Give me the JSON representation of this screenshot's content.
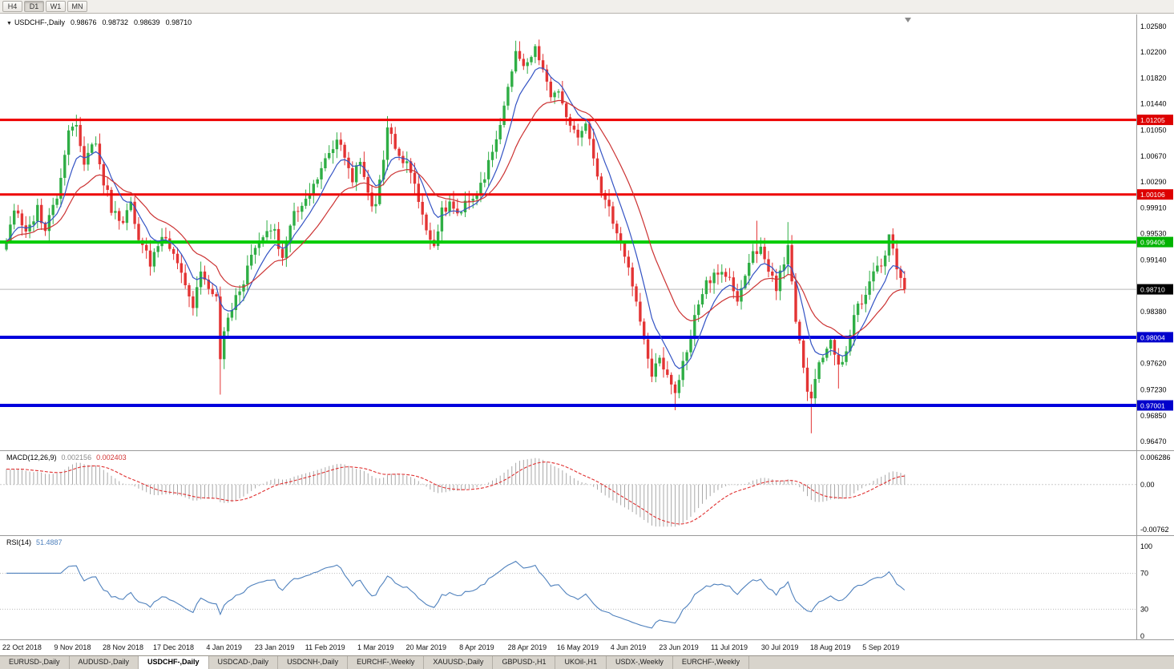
{
  "toolbar": {
    "periods": [
      "H4",
      "D1",
      "W1",
      "MN"
    ],
    "active": "D1"
  },
  "title": {
    "symbol": "USDCHF-,Daily",
    "open": "0.98676",
    "high": "0.98732",
    "low": "0.98639",
    "close": "0.98710"
  },
  "tabs": {
    "items": [
      "EURUSD-,Daily",
      "AUDUSD-,Daily",
      "USDCHF-,Daily",
      "USDCAD-,Daily",
      "USDCNH-,Daily",
      "EURCHF-,Weekly",
      "XAUUSD-,Daily",
      "GBPUSD-,H1",
      "UKOil-,H1",
      "USDX-,Weekly",
      "EURCHF-,Weekly"
    ],
    "active_index": 2
  },
  "chart_data": {
    "type": "candlestick",
    "symbol": "USDCHF",
    "timeframe": "Daily",
    "bar_count": 232,
    "last_close": 0.9871,
    "price_range": {
      "max": 1.0258,
      "min": 0.9647
    },
    "y_axis_ticks": [
      "1.02580",
      "1.02200",
      "1.01820",
      "1.01440",
      "1.01050",
      "1.00670",
      "1.00290",
      "0.99910",
      "0.99530",
      "0.99140",
      "0.98380",
      "0.97620",
      "0.97230",
      "0.96850",
      "0.96470"
    ],
    "price_badges": [
      {
        "value": "1.01205",
        "color": "#dd0000"
      },
      {
        "value": "1.00106",
        "color": "#dd0000"
      },
      {
        "value": "0.99406",
        "color": "#00b300"
      },
      {
        "value": "0.98710",
        "color": "#000000"
      },
      {
        "value": "0.98004",
        "color": "#0000cc"
      },
      {
        "value": "0.97001",
        "color": "#0000cc"
      }
    ],
    "hlines": [
      {
        "value": 1.01205,
        "color": "#ee0000",
        "width": 3
      },
      {
        "value": 1.00106,
        "color": "#ee0000",
        "width": 3
      },
      {
        "value": 0.99406,
        "color": "#00cc00",
        "width": 4
      },
      {
        "value": 0.98004,
        "color": "#0000dd",
        "width": 4
      },
      {
        "value": 0.97001,
        "color": "#0000dd",
        "width": 4
      }
    ],
    "current_price_line": 0.9871,
    "date_labels": [
      "22 Oct 2018",
      "9 Nov 2018",
      "28 Nov 2018",
      "17 Dec 2018",
      "4 Jan 2019",
      "23 Jan 2019",
      "11 Feb 2019",
      "1 Mar 2019",
      "20 Mar 2019",
      "8 Apr 2019",
      "28 Apr 2019",
      "16 May 2019",
      "4 Jun 2019",
      "23 Jun 2019",
      "11 Jul 2019",
      "30 Jul 2019",
      "18 Aug 2019",
      "5 Sep 2019"
    ],
    "anchors": [
      [
        0,
        0.9945
      ],
      [
        2,
        0.999
      ],
      [
        5,
        0.995
      ],
      [
        8,
        0.999
      ],
      [
        10,
        0.996
      ],
      [
        13,
        1.001
      ],
      [
        16,
        1.0105
      ],
      [
        18,
        1.0118
      ],
      [
        20,
        1.006
      ],
      [
        23,
        1.009
      ],
      [
        25,
        1.003
      ],
      [
        27,
        0.999
      ],
      [
        30,
        0.9965
      ],
      [
        32,
        1.0
      ],
      [
        34,
        0.9945
      ],
      [
        37,
        0.991
      ],
      [
        40,
        0.995
      ],
      [
        43,
        0.993
      ],
      [
        46,
        0.988
      ],
      [
        48,
        0.9845
      ],
      [
        50,
        0.99
      ],
      [
        52,
        0.987
      ],
      [
        54,
        0.9855
      ],
      [
        55,
        0.9765
      ],
      [
        56,
        0.9815
      ],
      [
        58,
        0.984
      ],
      [
        60,
        0.987
      ],
      [
        63,
        0.9915
      ],
      [
        66,
        0.995
      ],
      [
        69,
        0.9955
      ],
      [
        71,
        0.992
      ],
      [
        74,
        0.998
      ],
      [
        77,
        1.0
      ],
      [
        80,
        1.004
      ],
      [
        82,
        1.006
      ],
      [
        85,
        1.009
      ],
      [
        87,
        1.0065
      ],
      [
        89,
        1.0035
      ],
      [
        91,
        1.006
      ],
      [
        93,
        1.001
      ],
      [
        95,
        0.999
      ],
      [
        97,
        1.006
      ],
      [
        98,
        1.0115
      ],
      [
        101,
        1.007
      ],
      [
        104,
        1.0045
      ],
      [
        106,
        1.0
      ],
      [
        108,
        0.996
      ],
      [
        110,
        0.9935
      ],
      [
        112,
        0.9985
      ],
      [
        114,
        1.0
      ],
      [
        116,
        0.998
      ],
      [
        118,
        1.0
      ],
      [
        121,
        1.001
      ],
      [
        123,
        1.004
      ],
      [
        125,
        1.007
      ],
      [
        127,
        1.011
      ],
      [
        129,
        1.0165
      ],
      [
        131,
        1.0215
      ],
      [
        133,
        1.0195
      ],
      [
        134,
        1.0205
      ],
      [
        136,
        1.0225
      ],
      [
        138,
        1.019
      ],
      [
        140,
        1.015
      ],
      [
        142,
        1.0165
      ],
      [
        144,
        1.012
      ],
      [
        147,
        1.009
      ],
      [
        149,
        1.011
      ],
      [
        151,
        1.006
      ],
      [
        153,
        1.002
      ],
      [
        155,
        0.999
      ],
      [
        157,
        0.995
      ],
      [
        160,
        0.9905
      ],
      [
        162,
        0.9855
      ],
      [
        164,
        0.979
      ],
      [
        166,
        0.9745
      ],
      [
        168,
        0.9775
      ],
      [
        170,
        0.974
      ],
      [
        172,
        0.972
      ],
      [
        174,
        0.976
      ],
      [
        176,
        0.98
      ],
      [
        178,
        0.9855
      ],
      [
        180,
        0.988
      ],
      [
        183,
        0.99
      ],
      [
        186,
        0.9885
      ],
      [
        188,
        0.9855
      ],
      [
        190,
        0.9885
      ],
      [
        192,
        0.9925
      ],
      [
        194,
        0.9935
      ],
      [
        196,
        0.99
      ],
      [
        198,
        0.987
      ],
      [
        199,
        0.9895
      ],
      [
        201,
        0.9935
      ],
      [
        203,
        0.983
      ],
      [
        205,
        0.975
      ],
      [
        207,
        0.9705
      ],
      [
        209,
        0.976
      ],
      [
        211,
        0.979
      ],
      [
        212,
        0.98
      ],
      [
        214,
        0.9755
      ],
      [
        216,
        0.9785
      ],
      [
        218,
        0.983
      ],
      [
        220,
        0.9855
      ],
      [
        222,
        0.988
      ],
      [
        225,
        0.991
      ],
      [
        227,
        0.9945
      ],
      [
        229,
        0.9905
      ],
      [
        231,
        0.9871
      ]
    ],
    "wick_overrides": {
      "18": {
        "high": 1.0128
      },
      "55": {
        "low": 0.9716
      },
      "98": {
        "high": 1.0126
      },
      "131": {
        "high": 1.0237
      },
      "136": {
        "high": 1.0232
      },
      "172": {
        "low": 0.9693
      },
      "193": {
        "high": 0.9972
      },
      "201": {
        "high": 0.997
      },
      "207": {
        "low": 0.9659
      },
      "214": {
        "low": 0.9725
      },
      "227": {
        "high": 0.9951
      }
    },
    "colors": {
      "bull": "#2fae45",
      "bear": "#e33434",
      "ma_fast": "#3353c4",
      "ma_slow": "#cc3333",
      "macd_hist": "#a8a8a8",
      "macd_signal": "#e03030",
      "rsi": "#4f81bd"
    },
    "indicators": {
      "macd": {
        "label": "MACD(12,26,9)",
        "value_main": "0.002156",
        "value_signal": "0.002403",
        "axis_max": "0.006286",
        "axis_zero": "0.00",
        "axis_min": "-0.00762",
        "params": [
          12,
          26,
          9
        ]
      },
      "rsi": {
        "label": "RSI(14)",
        "value": "51.4887",
        "axis": [
          "100",
          "70",
          "30",
          "0"
        ],
        "levels": [
          70,
          30
        ],
        "period": 14
      }
    }
  }
}
